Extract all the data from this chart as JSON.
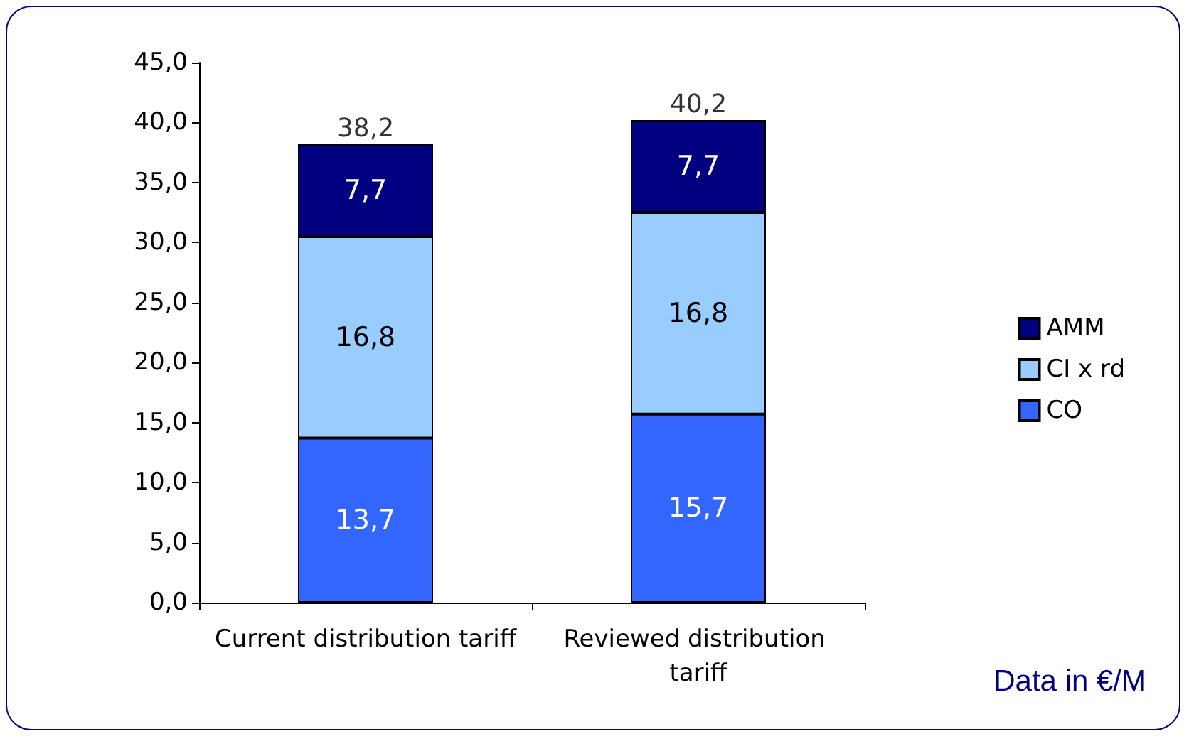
{
  "chart_data": {
    "type": "bar",
    "stacked": true,
    "categories": [
      "Current distribution tariff",
      "Reviewed distribution tariff"
    ],
    "series": [
      {
        "name": "CO",
        "color": "#3366ff",
        "values": [
          13.7,
          15.7
        ],
        "value_labels": [
          "13,7",
          "15,7"
        ]
      },
      {
        "name": "CI x rd",
        "color": "#99ccff",
        "values": [
          16.8,
          16.8
        ],
        "value_labels": [
          "16,8",
          "16,8"
        ]
      },
      {
        "name": "AMM",
        "color": "#000080",
        "values": [
          7.7,
          7.7
        ],
        "value_labels": [
          "7,7",
          "7,7"
        ]
      }
    ],
    "totals": [
      "38,2",
      "40,2"
    ],
    "ylim": [
      0,
      45
    ],
    "yticks": [
      {
        "value": 0,
        "label": "0,0"
      },
      {
        "value": 5,
        "label": "5,0"
      },
      {
        "value": 10,
        "label": "10,0"
      },
      {
        "value": 15,
        "label": "15,0"
      },
      {
        "value": 20,
        "label": "20,0"
      },
      {
        "value": 25,
        "label": "25,0"
      },
      {
        "value": 30,
        "label": "30,0"
      },
      {
        "value": 35,
        "label": "35,0"
      },
      {
        "value": 40,
        "label": "40,0"
      },
      {
        "value": 45,
        "label": "45,0"
      }
    ],
    "grid": false,
    "legend": "right",
    "annotations": [
      "Data in €/M"
    ]
  }
}
